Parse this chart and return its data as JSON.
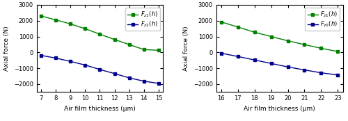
{
  "left": {
    "x": [
      7,
      8,
      9,
      10,
      11,
      12,
      13,
      14,
      15
    ],
    "F_top": [
      2300,
      2050,
      1800,
      1490,
      1150,
      810,
      490,
      175,
      130
    ],
    "F_bot": [
      -190,
      -360,
      -570,
      -800,
      -1080,
      -1340,
      -1610,
      -1820,
      -1960
    ],
    "legend_top": "$F_{z1}(h)$",
    "legend_bot": "$F_{z2}(h)$",
    "xlabel": "Air film thickness (μm)",
    "ylabel": "Axial force (N)",
    "ylim": [
      -2500,
      3000
    ],
    "yticks": [
      -2000,
      -1000,
      0,
      1000,
      2000,
      3000
    ],
    "xticks": [
      7,
      8,
      9,
      10,
      11,
      12,
      13,
      14,
      15
    ],
    "xlim": [
      6.7,
      15.3
    ]
  },
  "right": {
    "x": [
      16,
      17,
      18,
      19,
      20,
      21,
      22,
      23
    ],
    "F_top": [
      1920,
      1600,
      1270,
      1000,
      730,
      490,
      255,
      55
    ],
    "F_bot": [
      -55,
      -260,
      -480,
      -700,
      -920,
      -1110,
      -1290,
      -1430
    ],
    "legend_top": "$F_{z1}(h)$",
    "legend_bot": "$F_{z0}(h)$",
    "xlabel": "Air film thickness (μm)",
    "ylabel": "Axial force (N)",
    "ylim": [
      -2500,
      3000
    ],
    "yticks": [
      -2000,
      -1000,
      0,
      1000,
      2000,
      3000
    ],
    "xticks": [
      16,
      17,
      18,
      19,
      20,
      21,
      22,
      23
    ],
    "xlim": [
      15.7,
      23.3
    ]
  },
  "green_color": "#008000",
  "blue_color": "#00008B",
  "marker": "s",
  "markersize": 3.5,
  "linewidth": 1.0
}
